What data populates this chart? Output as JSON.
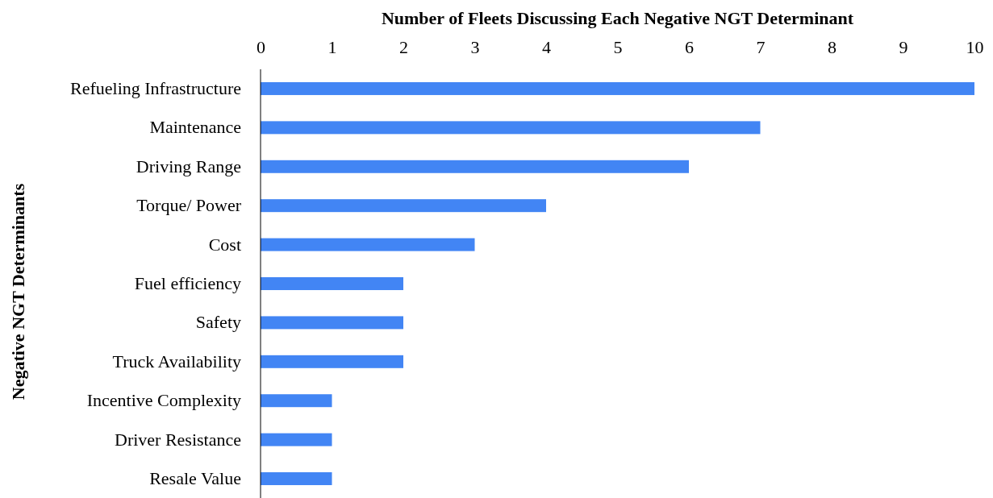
{
  "chart_data": {
    "type": "bar",
    "orientation": "horizontal",
    "title": "Number of Fleets Discussing Each Negative NGT Determinant",
    "ylabel": "Negative NGT Determinants",
    "categories": [
      "Refueling Infrastructure",
      "Maintenance",
      "Driving Range",
      "Torque/ Power",
      "Cost",
      "Fuel efficiency",
      "Safety",
      "Truck Availability",
      "Incentive Complexity",
      "Driver Resistance",
      "Resale Value"
    ],
    "values": [
      10,
      7,
      6,
      4,
      3,
      2,
      2,
      2,
      1,
      1,
      1
    ],
    "color": "#4285f4",
    "xlim": [
      0,
      10
    ],
    "xticks": [
      0,
      1,
      2,
      3,
      4,
      5,
      6,
      7,
      8,
      9,
      10
    ],
    "grid": false
  }
}
